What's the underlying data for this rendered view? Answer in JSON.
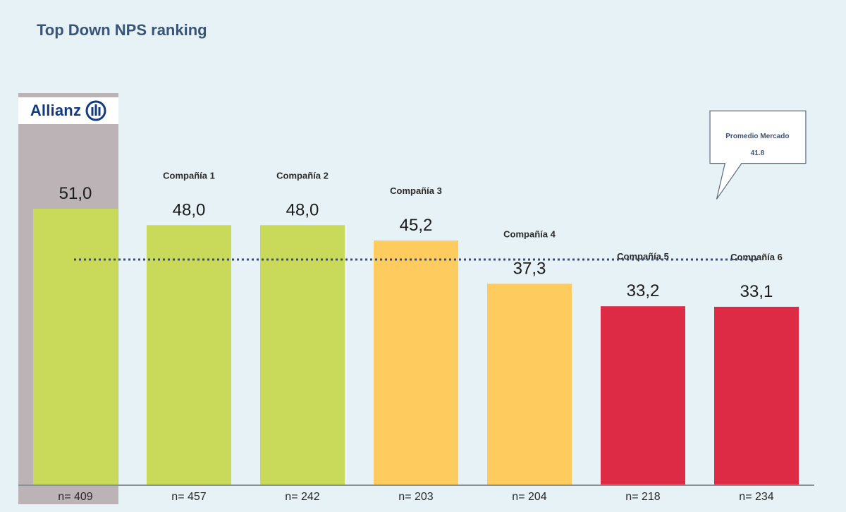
{
  "title": "Top Down NPS ranking",
  "highlight": {
    "brand": "Allianz",
    "logo_icon": "allianz-eagle-icon",
    "column_color": "#bcb3b7"
  },
  "callout": {
    "label": "Promedio Mercado",
    "value": "41.8"
  },
  "colors": {
    "green": "#c9d95a",
    "yellow": "#fdcb5e",
    "red": "#dd2b45",
    "text": "#1b1b1b",
    "title": "#3a5478",
    "average_line": "#3a4a6a"
  },
  "chart_data": {
    "type": "bar",
    "title": "Top Down NPS ranking",
    "xlabel": "",
    "ylabel": "",
    "categories": [
      "Allianz",
      "Compañía 1",
      "Compañía 2",
      "Compañía 3",
      "Compañía 4",
      "Compañía 5",
      "Compañía 6"
    ],
    "values": [
      51.0,
      48.0,
      48.0,
      45.2,
      37.3,
      33.2,
      33.1
    ],
    "value_labels": [
      "51,0",
      "48,0",
      "48,0",
      "45,2",
      "37,3",
      "33,2",
      "33,1"
    ],
    "category_labels": [
      "",
      "Compañía 1",
      "Compañía 2",
      "Compañía 3",
      "Compañía 4",
      "Compañía 5",
      "Compañía 6"
    ],
    "bar_colors": [
      "green",
      "green",
      "green",
      "yellow",
      "yellow",
      "red",
      "red"
    ],
    "sample_sizes": [
      "n= 409",
      "n= 457",
      "n= 242",
      "n= 203",
      "n= 204",
      "n= 218",
      "n= 234"
    ],
    "reference_line": {
      "label": "Promedio Mercado",
      "value": 41.8,
      "style": "dotted"
    },
    "grid": false,
    "legend": "none"
  }
}
